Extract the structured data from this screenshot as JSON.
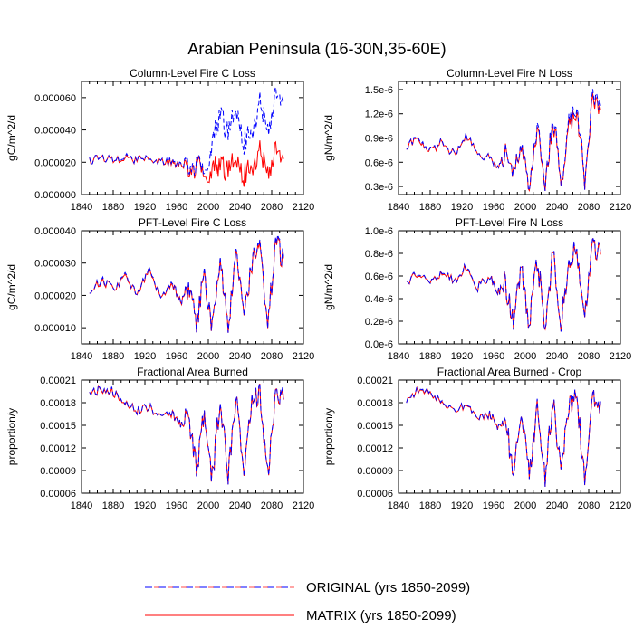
{
  "title": "Arabian Peninsula (16-30N,35-60E)",
  "colors": {
    "original": "#0000ff",
    "matrix": "#ff0000",
    "axis": "#000000"
  },
  "legend": {
    "original_label": "ORIGINAL (yrs 1850-2099)",
    "matrix_label": "MATRIX (yrs 1850-2099)",
    "original_style": "dashed",
    "matrix_style": "solid"
  },
  "chart_data": [
    {
      "type": "line",
      "title": "Column-Level Fire C Loss",
      "ylabel": "gC/m^2/d",
      "xlim": [
        1840,
        2120
      ],
      "ylim": [
        0,
        7e-05
      ],
      "x_ticks": [
        "1840",
        "1880",
        "1920",
        "1960",
        "2000",
        "2040",
        "2080",
        "2120"
      ],
      "y_ticks": [
        0,
        2e-05,
        4e-05,
        6e-05
      ],
      "y_tick_labels": [
        "0.000000",
        "0.000020",
        "0.000040",
        "0.000060"
      ],
      "series": [
        {
          "name": "ORIGINAL (yrs 1850-2099)",
          "x": [
            1850,
            1865,
            1880,
            1895,
            1910,
            1925,
            1940,
            1955,
            1965,
            1975,
            1985,
            1995,
            2005,
            2015,
            2025,
            2035,
            2045,
            2055,
            2065,
            2075,
            2085,
            2095
          ],
          "values": [
            2.1e-05,
            2.3e-05,
            2.2e-05,
            2.4e-05,
            2.1e-05,
            2.2e-05,
            2e-05,
            2.1e-05,
            1.9e-05,
            2e-05,
            1.7e-05,
            1.8e-05,
            3e-05,
            5.2e-05,
            3.6e-05,
            5.5e-05,
            3.2e-05,
            3.8e-05,
            5.8e-05,
            4e-05,
            6e-05,
            5.8e-05
          ]
        },
        {
          "name": "MATRIX (yrs 1850-2099)",
          "x": [
            1850,
            1865,
            1880,
            1895,
            1910,
            1925,
            1940,
            1955,
            1965,
            1975,
            1985,
            1995,
            2005,
            2015,
            2025,
            2035,
            2045,
            2055,
            2065,
            2075,
            2085,
            2095
          ],
          "values": [
            2.1e-05,
            2.3e-05,
            2.2e-05,
            2.3e-05,
            2.1e-05,
            2.2e-05,
            2e-05,
            2e-05,
            1.9e-05,
            1.8e-05,
            1.6e-05,
            1.6e-05,
            1.4e-05,
            2e-05,
            1.3e-05,
            2.4e-05,
            1.2e-05,
            1.6e-05,
            2.8e-05,
            1.4e-05,
            2.6e-05,
            2.2e-05
          ]
        }
      ]
    },
    {
      "type": "line",
      "title": "Column-Level Fire N Loss",
      "ylabel": "gN/m^2/d",
      "xlim": [
        1840,
        2120
      ],
      "ylim": [
        2e-07,
        1.6e-06
      ],
      "x_ticks": [
        "1840",
        "1880",
        "1920",
        "1960",
        "2000",
        "2040",
        "2080",
        "2120"
      ],
      "y_ticks": [
        3e-07,
        6e-07,
        9e-07,
        1.2e-06,
        1.5e-06
      ],
      "y_tick_labels": [
        "0.3e-6",
        "0.6e-6",
        "0.9e-6",
        "1.2e-6",
        "1.5e-6"
      ],
      "series": [
        {
          "name": "ORIGINAL (yrs 1850-2099)",
          "x": [
            1850,
            1865,
            1880,
            1895,
            1910,
            1925,
            1940,
            1955,
            1965,
            1975,
            1985,
            1995,
            2005,
            2015,
            2025,
            2035,
            2045,
            2055,
            2065,
            2075,
            2085,
            2095
          ],
          "values": [
            8e-07,
            9e-07,
            7.5e-07,
            8.5e-07,
            7e-07,
            9.5e-07,
            7e-07,
            6.5e-07,
            5.5e-07,
            7e-07,
            4e-07,
            9e-07,
            3e-07,
            1.1e-06,
            3e-07,
            1.2e-06,
            3.5e-07,
            1.1e-06,
            1.3e-06,
            4e-07,
            1.4e-06,
            1.3e-06
          ]
        },
        {
          "name": "MATRIX (yrs 1850-2099)",
          "x": [
            1850,
            1865,
            1880,
            1895,
            1910,
            1925,
            1940,
            1955,
            1965,
            1975,
            1985,
            1995,
            2005,
            2015,
            2025,
            2035,
            2045,
            2055,
            2065,
            2075,
            2085,
            2095
          ],
          "values": [
            8e-07,
            8.8e-07,
            7.4e-07,
            8.4e-07,
            7e-07,
            9.4e-07,
            7e-07,
            6.5e-07,
            5.5e-07,
            7e-07,
            4e-07,
            8.8e-07,
            3e-07,
            1.05e-06,
            3e-07,
            1.15e-06,
            3.5e-07,
            1.05e-06,
            1.25e-06,
            4e-07,
            1.35e-06,
            1.25e-06
          ]
        }
      ]
    },
    {
      "type": "line",
      "title": "PFT-Level Fire C Loss",
      "ylabel": "gC/m^2/d",
      "xlim": [
        1840,
        2120
      ],
      "ylim": [
        5e-06,
        4e-05
      ],
      "x_ticks": [
        "1840",
        "1880",
        "1920",
        "1960",
        "2000",
        "2040",
        "2080",
        "2120"
      ],
      "y_ticks": [
        1e-05,
        2e-05,
        3e-05,
        4e-05
      ],
      "y_tick_labels": [
        "0.000010",
        "0.000020",
        "0.000030",
        "0.000040"
      ],
      "series": [
        {
          "name": "ORIGINAL (yrs 1850-2099)",
          "x": [
            1850,
            1865,
            1880,
            1895,
            1910,
            1925,
            1940,
            1955,
            1965,
            1975,
            1985,
            1995,
            2005,
            2015,
            2025,
            2035,
            2045,
            2055,
            2065,
            2075,
            2085,
            2095
          ],
          "values": [
            2.1e-05,
            2.5e-05,
            2.2e-05,
            2.6e-05,
            2.1e-05,
            2.8e-05,
            2e-05,
            2.4e-05,
            1.8e-05,
            2.2e-05,
            1.2e-05,
            2.6e-05,
            1e-05,
            3e-05,
            1e-05,
            3.2e-05,
            1.2e-05,
            3e-05,
            3.4e-05,
            1.1e-05,
            3.6e-05,
            3.2e-05
          ]
        },
        {
          "name": "MATRIX (yrs 1850-2099)",
          "x": [
            1850,
            1865,
            1880,
            1895,
            1910,
            1925,
            1940,
            1955,
            1965,
            1975,
            1985,
            1995,
            2005,
            2015,
            2025,
            2035,
            2045,
            2055,
            2065,
            2075,
            2085,
            2095
          ],
          "values": [
            2.1e-05,
            2.45e-05,
            2.2e-05,
            2.55e-05,
            2.1e-05,
            2.75e-05,
            2e-05,
            2.35e-05,
            1.8e-05,
            2.15e-05,
            1.2e-05,
            2.55e-05,
            1e-05,
            2.95e-05,
            1e-05,
            3.15e-05,
            1.2e-05,
            2.95e-05,
            3.35e-05,
            1.1e-05,
            3.55e-05,
            3.15e-05
          ]
        }
      ]
    },
    {
      "type": "line",
      "title": "PFT-Level Fire N Loss",
      "ylabel": "gN/m^2/d",
      "xlim": [
        1840,
        2120
      ],
      "ylim": [
        0,
        1e-06
      ],
      "x_ticks": [
        "1840",
        "1880",
        "1920",
        "1960",
        "2000",
        "2040",
        "2080",
        "2120"
      ],
      "y_ticks": [
        0,
        2e-07,
        4e-07,
        6e-07,
        8e-07,
        1e-06
      ],
      "y_tick_labels": [
        "0.0e-6",
        "0.2e-6",
        "0.4e-6",
        "0.6e-6",
        "0.8e-6",
        "1.0e-6"
      ],
      "series": [
        {
          "name": "ORIGINAL (yrs 1850-2099)",
          "x": [
            1850,
            1865,
            1880,
            1895,
            1910,
            1925,
            1940,
            1955,
            1965,
            1975,
            1985,
            1995,
            2005,
            2015,
            2025,
            2035,
            2045,
            2055,
            2065,
            2075,
            2085,
            2095
          ],
          "values": [
            5.5e-07,
            6.2e-07,
            5.5e-07,
            6.5e-07,
            5.5e-07,
            7e-07,
            5e-07,
            6e-07,
            4.5e-07,
            5.5e-07,
            2e-07,
            6.5e-07,
            1.8e-07,
            7.5e-07,
            1.8e-07,
            8e-07,
            2e-07,
            7.5e-07,
            8.5e-07,
            2e-07,
            9e-07,
            8e-07
          ]
        },
        {
          "name": "MATRIX (yrs 1850-2099)",
          "x": [
            1850,
            1865,
            1880,
            1895,
            1910,
            1925,
            1940,
            1955,
            1965,
            1975,
            1985,
            1995,
            2005,
            2015,
            2025,
            2035,
            2045,
            2055,
            2065,
            2075,
            2085,
            2095
          ],
          "values": [
            5.5e-07,
            6.1e-07,
            5.5e-07,
            6.4e-07,
            5.5e-07,
            6.9e-07,
            5e-07,
            6e-07,
            4.5e-07,
            5.4e-07,
            2e-07,
            6.4e-07,
            1.8e-07,
            7.4e-07,
            1.8e-07,
            7.9e-07,
            2e-07,
            7.4e-07,
            8.4e-07,
            2e-07,
            8.9e-07,
            7.9e-07
          ]
        }
      ]
    },
    {
      "type": "line",
      "title": "Fractional Area Burned",
      "ylabel": "proportion/y",
      "xlim": [
        1840,
        2120
      ],
      "ylim": [
        6e-05,
        0.00021
      ],
      "x_ticks": [
        "1840",
        "1880",
        "1920",
        "1960",
        "2000",
        "2040",
        "2080",
        "2120"
      ],
      "y_ticks": [
        6e-05,
        9e-05,
        0.00012,
        0.00015,
        0.00018,
        0.00021
      ],
      "y_tick_labels": [
        "0.00006",
        "0.00009",
        "0.00012",
        "0.00015",
        "0.00018",
        "0.00021"
      ],
      "series": [
        {
          "name": "ORIGINAL (yrs 1850-2099)",
          "x": [
            1850,
            1865,
            1880,
            1895,
            1910,
            1925,
            1940,
            1955,
            1965,
            1975,
            1985,
            1995,
            2005,
            2015,
            2025,
            2035,
            2045,
            2055,
            2065,
            2075,
            2085,
            2095
          ],
          "values": [
            0.00019,
            0.0002,
            0.000195,
            0.00018,
            0.00017,
            0.000175,
            0.00016,
            0.000165,
            0.00015,
            0.00016,
            9e-05,
            0.00017,
            8e-05,
            0.000185,
            8e-05,
            0.00019,
            8.5e-05,
            0.00018,
            0.00019,
            8e-05,
            0.000195,
            0.000185
          ]
        },
        {
          "name": "MATRIX (yrs 1850-2099)",
          "x": [
            1850,
            1865,
            1880,
            1895,
            1910,
            1925,
            1940,
            1955,
            1965,
            1975,
            1985,
            1995,
            2005,
            2015,
            2025,
            2035,
            2045,
            2055,
            2065,
            2075,
            2085,
            2095
          ],
          "values": [
            0.00019,
            0.000199,
            0.000194,
            0.000179,
            0.00017,
            0.000174,
            0.00016,
            0.000164,
            0.00015,
            0.000159,
            9e-05,
            0.000169,
            8e-05,
            0.000184,
            8e-05,
            0.000189,
            8.5e-05,
            0.000179,
            0.000189,
            8e-05,
            0.000194,
            0.000184
          ]
        }
      ]
    },
    {
      "type": "line",
      "title": "Fractional Area Burned - Crop",
      "ylabel": "proportion/y",
      "xlim": [
        1840,
        2120
      ],
      "ylim": [
        6e-05,
        0.00021
      ],
      "x_ticks": [
        "1840",
        "1880",
        "1920",
        "1960",
        "2000",
        "2040",
        "2080",
        "2120"
      ],
      "y_ticks": [
        6e-05,
        9e-05,
        0.00012,
        0.00015,
        0.00018,
        0.00021
      ],
      "y_tick_labels": [
        "0.00006",
        "0.00009",
        "0.00012",
        "0.00015",
        "0.00018",
        "0.00021"
      ],
      "series": [
        {
          "name": "ORIGINAL (yrs 1850-2099)",
          "x": [
            1850,
            1865,
            1880,
            1895,
            1910,
            1925,
            1940,
            1955,
            1965,
            1975,
            1985,
            1995,
            2005,
            2015,
            2025,
            2035,
            2045,
            2055,
            2065,
            2075,
            2085,
            2095
          ],
          "values": [
            0.000185,
            0.000198,
            0.000192,
            0.000182,
            0.000172,
            0.000178,
            0.000158,
            0.000166,
            0.000148,
            0.000158,
            8.8e-05,
            0.000168,
            7.8e-05,
            0.000182,
            7.8e-05,
            0.000188,
            8.2e-05,
            0.000178,
            0.000188,
            7.8e-05,
            0.000192,
            0.000182
          ]
        },
        {
          "name": "MATRIX (yrs 1850-2099)",
          "x": [
            1850,
            1865,
            1880,
            1895,
            1910,
            1925,
            1940,
            1955,
            1965,
            1975,
            1985,
            1995,
            2005,
            2015,
            2025,
            2035,
            2045,
            2055,
            2065,
            2075,
            2085,
            2095
          ],
          "values": [
            0.000185,
            0.000197,
            0.000191,
            0.000181,
            0.000172,
            0.000177,
            0.000158,
            0.000165,
            0.000148,
            0.000157,
            8.8e-05,
            0.000167,
            7.8e-05,
            0.000181,
            7.8e-05,
            0.000187,
            8.2e-05,
            0.000177,
            0.000187,
            7.8e-05,
            0.000191,
            0.000181
          ]
        }
      ]
    }
  ]
}
